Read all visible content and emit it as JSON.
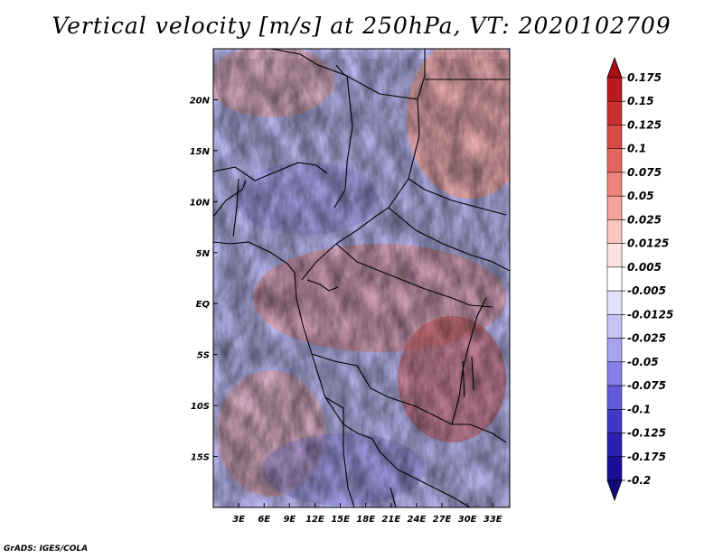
{
  "title": "Vertical velocity [m/s] at 250hPa, VT: 2020102709",
  "footer": "GrADS: IGES/COLA",
  "map": {
    "lat_labels": [
      "20N",
      "15N",
      "10N",
      "5N",
      "EQ",
      "5S",
      "10S",
      "15S"
    ],
    "lat_values": [
      20,
      15,
      10,
      5,
      0,
      -5,
      -10,
      -15
    ],
    "lon_labels": [
      "3E",
      "6E",
      "9E",
      "12E",
      "15E",
      "18E",
      "21E",
      "24E",
      "27E",
      "30E",
      "33E"
    ],
    "lon_values": [
      3,
      6,
      9,
      12,
      15,
      18,
      21,
      24,
      27,
      30,
      33
    ],
    "lon_range": [
      0,
      35
    ],
    "lat_range": [
      -20,
      25
    ]
  },
  "colorbar": {
    "labels": [
      "0.175",
      "0.15",
      "0.125",
      "0.1",
      "0.075",
      "0.05",
      "0.025",
      "0.0125",
      "0.005",
      "-0.005",
      "-0.0125",
      "-0.025",
      "-0.05",
      "-0.075",
      "-0.1",
      "-0.125",
      "-0.175",
      "-0.2"
    ],
    "colors": [
      "#a50f15",
      "#b81c22",
      "#c9302f",
      "#d84a44",
      "#e4655d",
      "#ec837a",
      "#f3a39b",
      "#f8c5bf",
      "#fce3e0",
      "#ffffff",
      "#e2e1fb",
      "#c6c4f6",
      "#a7a3ee",
      "#8580e6",
      "#625cdb",
      "#4039c8",
      "#2a20b0",
      "#1a0f96",
      "#120a7a"
    ]
  }
}
